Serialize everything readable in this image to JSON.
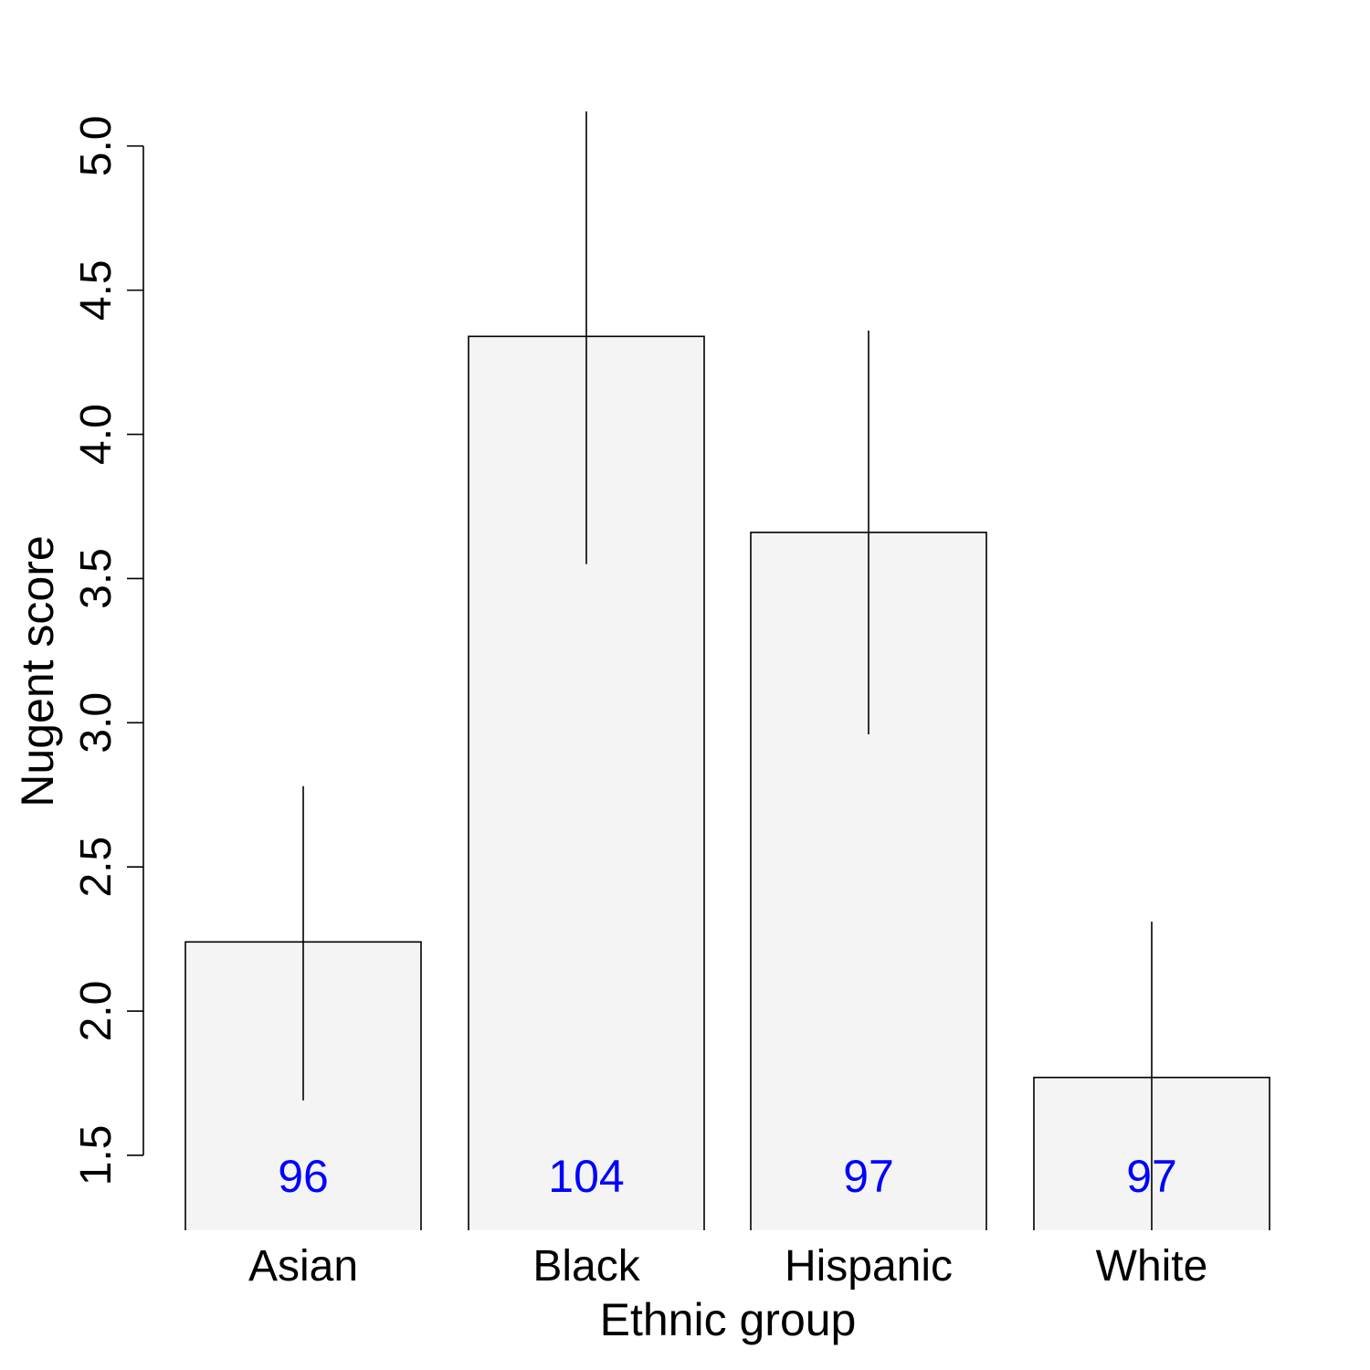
{
  "chart_data": {
    "type": "bar",
    "categories": [
      "Asian",
      "Black",
      "Hispanic",
      "White"
    ],
    "values": [
      2.24,
      4.34,
      3.66,
      1.77
    ],
    "error_low": [
      1.69,
      3.55,
      2.96,
      1.23
    ],
    "error_high": [
      2.78,
      5.12,
      4.36,
      2.31
    ],
    "counts": [
      "96",
      "104",
      "97",
      "97"
    ],
    "xlabel": "Ethnic group",
    "ylabel": "Nugent score",
    "ylim": [
      1.24,
      5.12
    ],
    "yticks": [
      1.5,
      2.0,
      2.5,
      3.0,
      3.5,
      4.0,
      4.5,
      5.0
    ],
    "ytick_labels": [
      "1.5",
      "2.0",
      "2.5",
      "3.0",
      "3.5",
      "4.0",
      "4.5",
      "5.0"
    ],
    "grid": false,
    "legend": "none",
    "colors": {
      "bar_fill": "#f4f4f4",
      "bar_stroke": "#000000",
      "count_text": "#0000ff",
      "error_bar": "#000000"
    }
  }
}
